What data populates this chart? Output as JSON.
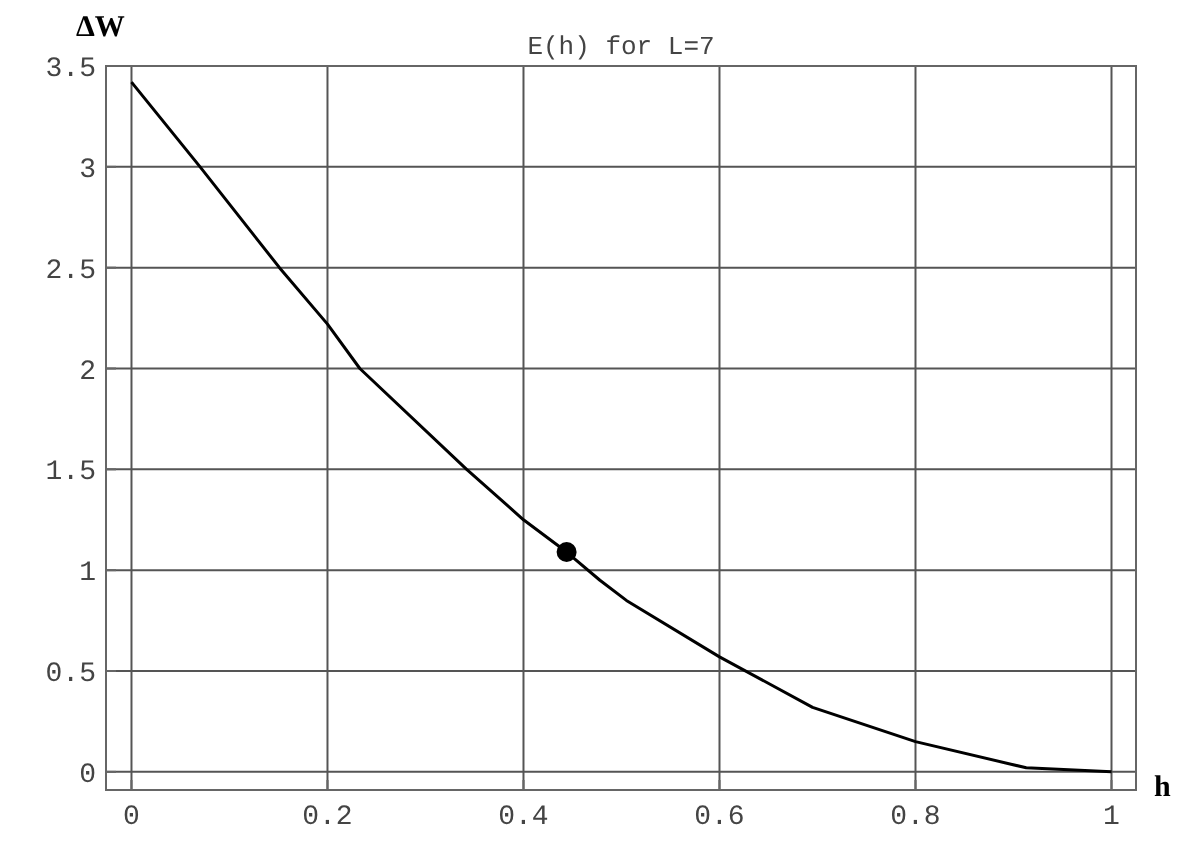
{
  "chart_data": {
    "type": "line",
    "title": "E(h) for L=7",
    "xlabel": "h",
    "ylabel": "ΔW",
    "xlim": [
      -0.026,
      1.025
    ],
    "ylim": [
      -0.09,
      3.5
    ],
    "xticks": [
      0,
      0.2,
      0.4,
      0.6,
      0.8,
      1
    ],
    "yticks": [
      0,
      0.5,
      1,
      1.5,
      2,
      2.5,
      3,
      3.5
    ],
    "grid": true,
    "series": [
      {
        "color": "#000000",
        "marker": "none",
        "x": [
          0,
          0.07,
          0.151,
          0.2,
          0.233,
          0.342,
          0.4,
          0.444,
          0.478,
          0.505,
          0.6,
          0.695,
          0.8,
          0.913,
          1
        ],
        "values": [
          3.42,
          3,
          2.5,
          2.22,
          2,
          1.5,
          1.25,
          1.09,
          0.95,
          0.85,
          0.57,
          0.32,
          0.15,
          0.02,
          0
        ]
      },
      {
        "type": "scatter",
        "color": "#000000",
        "marker": "circle",
        "x": [
          0.444
        ],
        "values": [
          1.09
        ]
      }
    ]
  }
}
